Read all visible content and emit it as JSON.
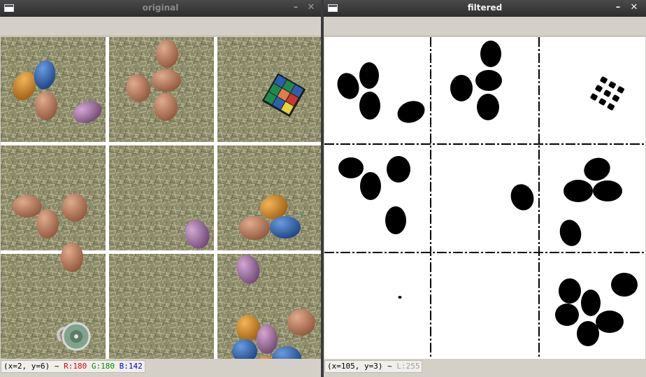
{
  "windows": {
    "left": {
      "title": "original",
      "minimize": "–",
      "close": "✕",
      "status": {
        "coords": "(x=2, y=6) ~",
        "r": "R:180",
        "g": "G:180",
        "b": "B:142"
      }
    },
    "right": {
      "title": "filtered",
      "minimize": "–",
      "close": "✕",
      "status": {
        "coords": "(x=105, y=3) ~",
        "l": "L:255"
      }
    }
  },
  "colors": {
    "hay": "#8f8f6a",
    "hay_light": "#b8b48c",
    "egg_brown": "#a9735a",
    "egg_orange": "#d08a2e",
    "egg_blue": "#2f5ea8",
    "egg_purple": "#9a6c9c",
    "status_red": "#e00000",
    "status_green": "#008a00",
    "status_blue": "#0000d0"
  },
  "tiles": {
    "left": [
      "blue, orange, brown, purple eggs",
      "four brown eggs",
      "rubik cube",
      "four brown eggs",
      "one purple egg",
      "orange, brown, blue, purple eggs",
      "combination lock",
      "empty hay",
      "mixed colored eggs"
    ]
  }
}
